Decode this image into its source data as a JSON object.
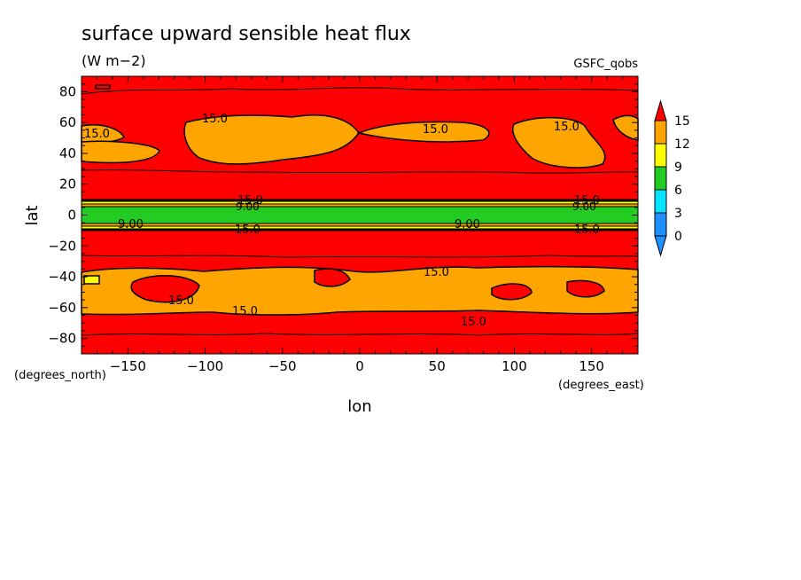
{
  "chart_data": {
    "type": "heatmap",
    "title": "surface upward sensible heat flux",
    "units": "(W m−2)",
    "source": "GSFC_qobs",
    "xlabel": "lon",
    "ylabel": "lat",
    "x_units": "(degrees_east)",
    "y_units": "(degrees_north)",
    "xlim": [
      -180,
      180
    ],
    "ylim": [
      -90,
      90
    ],
    "x_ticks": [
      -150,
      -100,
      -50,
      0,
      50,
      100,
      150
    ],
    "y_ticks": [
      -80,
      -60,
      -40,
      -20,
      0,
      20,
      40,
      60,
      80
    ],
    "colorbar": {
      "levels": [
        0,
        3,
        6,
        9,
        12,
        15
      ],
      "colors": [
        "#1e90ff",
        "#00e5ff",
        "#22cc22",
        "#ffff00",
        "#ffa500",
        "#ff0000"
      ],
      "under_color": "#1e90ff",
      "over_color": "#ff0000"
    },
    "contour_labels": [
      "15.0",
      "15.0",
      "15.0",
      "15.0",
      "15.0",
      "15.0",
      "15.0",
      "15.0",
      "15.0",
      "15.0",
      "15.0",
      "15.0",
      "9.00",
      "9.00",
      "9.00",
      "9.00"
    ],
    "zonal_bands": [
      {
        "lat": [
          31,
          90
        ],
        "value": 15
      },
      {
        "lat": [
          9,
          31
        ],
        "value": 15
      },
      {
        "lat": [
          6,
          9
        ],
        "value": 12
      },
      {
        "lat": [
          -6,
          6
        ],
        "value": 8
      },
      {
        "lat": [
          -9,
          -6
        ],
        "value": 12
      },
      {
        "lat": [
          -33,
          -9
        ],
        "value": 15
      },
      {
        "lat": [
          -62,
          -33
        ],
        "value": 13
      },
      {
        "lat": [
          -90,
          -62
        ],
        "value": 15
      }
    ]
  }
}
